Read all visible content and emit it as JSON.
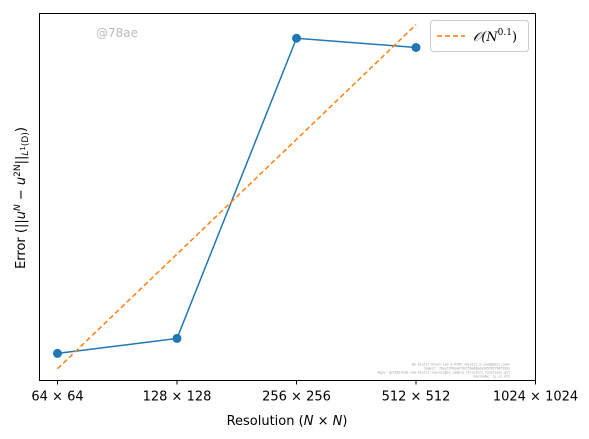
{
  "chart_data": {
    "type": "line",
    "title": "",
    "xlabel": "Resolution ($N \\times N$)",
    "xlabel_parts": [
      "Resolution (",
      "N",
      " × ",
      "N",
      ")"
    ],
    "ylabel": "Error ($||u^N - u^{2N}||_{L^1(D)}$)",
    "ylabel_parts": [
      "Error (||",
      "u",
      "N",
      " − ",
      "u",
      "2N",
      "||",
      "L",
      "1",
      "(D)",
      ")"
    ],
    "x_scale": "log2",
    "xlim": [
      64,
      1024
    ],
    "y_scale": "log",
    "yticks_shown": false,
    "grid": false,
    "legend_position": "top-right",
    "x_ticks": [
      {
        "value": 64,
        "label": "64 × 64"
      },
      {
        "value": 128,
        "label": "128 × 128"
      },
      {
        "value": 256,
        "label": "256 × 256"
      },
      {
        "value": 512,
        "label": "512 × 512"
      },
      {
        "value": 1024,
        "label": "1024 × 1024"
      }
    ],
    "series": [
      {
        "label": "",
        "color": "#1f77b4",
        "style": "solid",
        "marker": "circle",
        "x": [
          64,
          128,
          256,
          512
        ],
        "y": [
          0.083,
          0.085,
          0.137,
          0.135
        ]
      },
      {
        "label": "𝒪(N^0.1)",
        "legend_parts": [
          "𝒪(",
          "N",
          "0.1",
          ")"
        ],
        "color": "#ff7f0e",
        "style": "dashed",
        "marker": "none",
        "x": [
          64,
          512
        ],
        "y": [
          0.081,
          0.14
        ]
      }
    ]
  },
  "watermark": "@78ae",
  "credit_lines": [
    "By Kjetil Olsen Lye & KTH2 <kjetil.o.lye@gmail.com>",
    "Commit: 70eef0f6ea8fd2f59e48bda34578f76073992",
    "Repo: git@github.com:kjetil-lye/single_sample_structure_functions.git",
    "Hostname: 1e.el.kth"
  ]
}
